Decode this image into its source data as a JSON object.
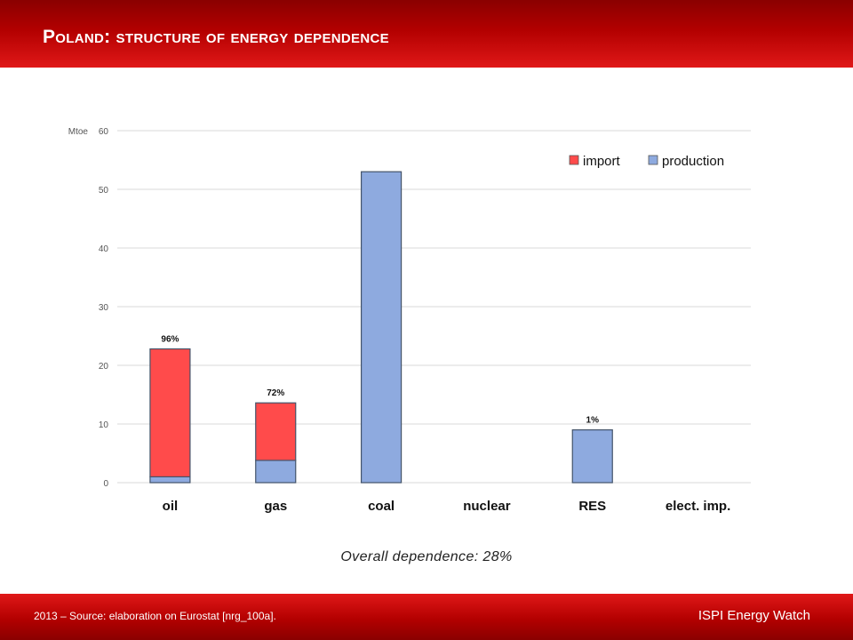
{
  "title": "Poland: structure of energy dependence",
  "caption": "Overall dependence: 28%",
  "footer": {
    "source": "2013 – Source: elaboration on Eurostat [nrg_100a].",
    "brand": "ISPI Energy Watch"
  },
  "colors": {
    "import": "#ff4b4b",
    "production": "#8eaadf"
  },
  "chart_data": {
    "type": "bar",
    "stacked": true,
    "categories": [
      "oil",
      "gas",
      "coal",
      "nuclear",
      "RES",
      "elect. imp."
    ],
    "series": [
      {
        "name": "production",
        "values": [
          1,
          3.8,
          53,
          0,
          9,
          0
        ]
      },
      {
        "name": "import",
        "values": [
          21.8,
          9.8,
          0,
          0,
          0,
          0
        ]
      }
    ],
    "data_labels": [
      "96%",
      "72%",
      "",
      "",
      "1%",
      ""
    ],
    "ylabel": "Mtoe",
    "ylim": [
      0,
      60
    ],
    "yticks": [
      0,
      10,
      20,
      30,
      40,
      50,
      60
    ],
    "grid": true,
    "legend": "top-right"
  }
}
